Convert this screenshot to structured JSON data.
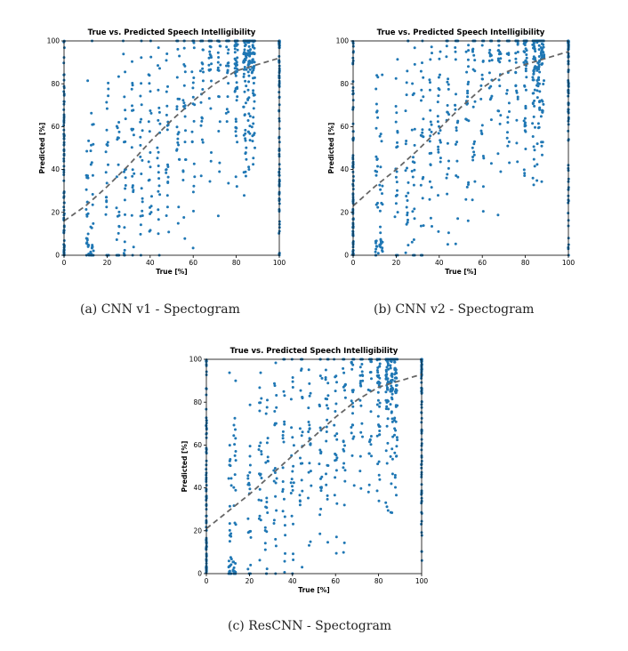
{
  "colors": {
    "points": "#1f77b4",
    "trend": "#666666",
    "axis": "#000000"
  },
  "chart_data": [
    {
      "type": "scatter",
      "title": "True vs. Predicted Speech Intelligibility",
      "xlabel": "True [%]",
      "ylabel": "Predicted [%]",
      "xlim": [
        0,
        100
      ],
      "ylim": [
        0,
        100
      ],
      "xticks": [
        "0",
        "20",
        "40",
        "60",
        "80",
        "100"
      ],
      "yticks": [
        "0",
        "20",
        "40",
        "60",
        "80",
        "100"
      ],
      "grid": false,
      "true_levels": [
        0,
        11,
        13,
        20,
        25,
        28,
        32,
        36,
        40,
        44,
        48,
        53,
        56,
        60,
        64,
        68,
        72,
        76,
        80,
        84,
        86,
        88,
        100
      ],
      "trend": {
        "x": [
          0,
          10,
          20,
          30,
          40,
          50,
          60,
          70,
          80,
          90,
          100
        ],
        "y": [
          16,
          23,
          32,
          42,
          53,
          63,
          72,
          80,
          86,
          89,
          92
        ]
      },
      "caption": "(a) CNN v1 - Spectogram"
    },
    {
      "type": "scatter",
      "title": "True vs. Predicted Speech Intelligibility",
      "xlabel": "True [%]",
      "ylabel": "Predicted [%]",
      "xlim": [
        0,
        100
      ],
      "ylim": [
        0,
        100
      ],
      "xticks": [
        "0",
        "20",
        "40",
        "60",
        "80",
        "100"
      ],
      "yticks": [
        "0",
        "20",
        "40",
        "60",
        "80",
        "100"
      ],
      "grid": false,
      "true_levels": [
        0,
        11,
        13,
        20,
        25,
        28,
        32,
        36,
        40,
        44,
        48,
        53,
        56,
        60,
        64,
        68,
        72,
        76,
        80,
        84,
        86,
        88,
        100
      ],
      "trend": {
        "x": [
          0,
          10,
          20,
          30,
          40,
          50,
          60,
          70,
          80,
          90,
          100
        ],
        "y": [
          23,
          32,
          40,
          49,
          59,
          69,
          78,
          85,
          89,
          92,
          95
        ]
      },
      "caption": "(b) CNN v2 - Spectogram"
    },
    {
      "type": "scatter",
      "title": "True vs. Predicted Speech Intelligibility",
      "xlabel": "True [%]",
      "ylabel": "Predicted [%]",
      "xlim": [
        0,
        100
      ],
      "ylim": [
        0,
        100
      ],
      "xticks": [
        "0",
        "20",
        "40",
        "60",
        "80",
        "100"
      ],
      "yticks": [
        "0",
        "20",
        "40",
        "60",
        "80",
        "100"
      ],
      "grid": false,
      "true_levels": [
        0,
        11,
        13,
        20,
        25,
        28,
        32,
        36,
        40,
        44,
        48,
        53,
        56,
        60,
        64,
        68,
        72,
        76,
        80,
        84,
        86,
        88,
        100
      ],
      "trend": {
        "x": [
          0,
          10,
          20,
          30,
          40,
          50,
          60,
          70,
          80,
          90,
          100
        ],
        "y": [
          21,
          29,
          37,
          46,
          55,
          64,
          73,
          81,
          87,
          90,
          93
        ]
      },
      "caption": "(c) ResCNN - Spectogram"
    }
  ]
}
